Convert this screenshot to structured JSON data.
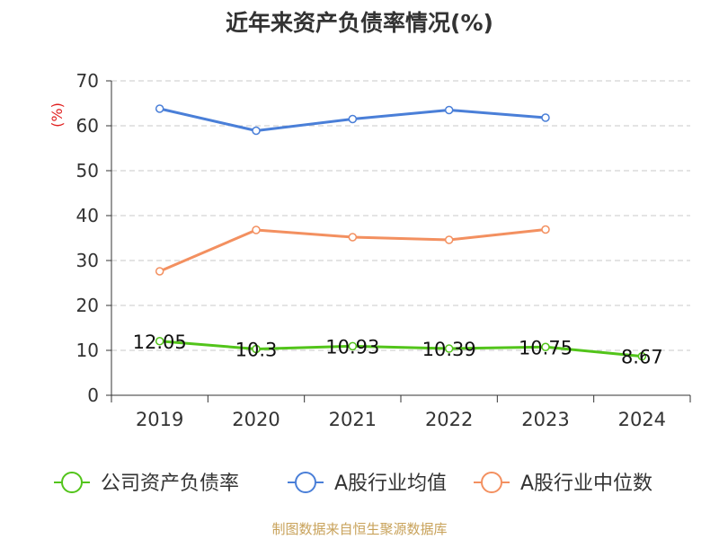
{
  "chart_data": {
    "type": "line",
    "title": "近年来资产负债率情况(%)",
    "ylabel": "(%)",
    "categories": [
      "2019",
      "2020",
      "2021",
      "2022",
      "2023",
      "2024"
    ],
    "ylim": [
      0,
      70
    ],
    "yticks": [
      0,
      10,
      20,
      30,
      40,
      50,
      60,
      70
    ],
    "grid": "horizontal-dashed",
    "legend_position": "bottom",
    "series": [
      {
        "name": "公司资产负债率",
        "color": "#52c41a",
        "values": [
          12.05,
          10.3,
          10.93,
          10.39,
          10.75,
          8.67
        ],
        "labels": [
          "12.05",
          "10.3",
          "10.93",
          "10.39",
          "10.75",
          "8.67"
        ]
      },
      {
        "name": "A股行业均值",
        "color": "#4a7fd8",
        "values": [
          63.8,
          58.9,
          61.5,
          63.5,
          61.8,
          null
        ]
      },
      {
        "name": "A股行业中位数",
        "color": "#f39060",
        "values": [
          27.6,
          36.8,
          35.2,
          34.6,
          36.9,
          null
        ]
      }
    ]
  },
  "source": "制图数据来自恒生聚源数据库"
}
